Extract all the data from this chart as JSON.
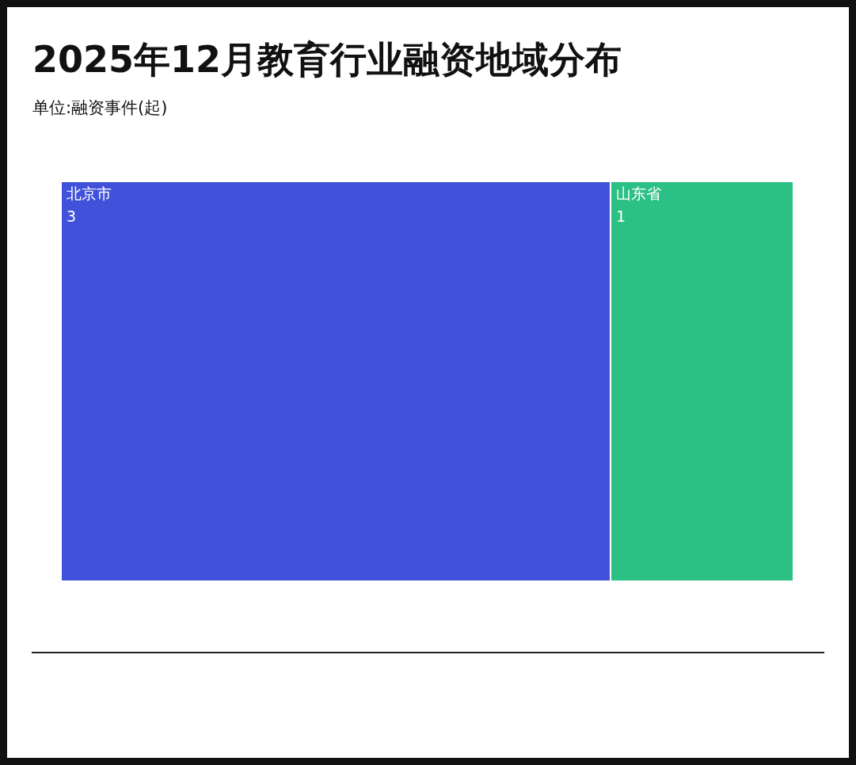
{
  "chart_data": {
    "type": "other",
    "title": "2025年12月教育行业融资地域分布",
    "subtitle": "单位:融资事件(起)",
    "categories": [
      "北京市",
      "山东省"
    ],
    "values": [
      3,
      1
    ],
    "colors": [
      "#4052d9",
      "#2bc084"
    ],
    "data_labels": true
  }
}
